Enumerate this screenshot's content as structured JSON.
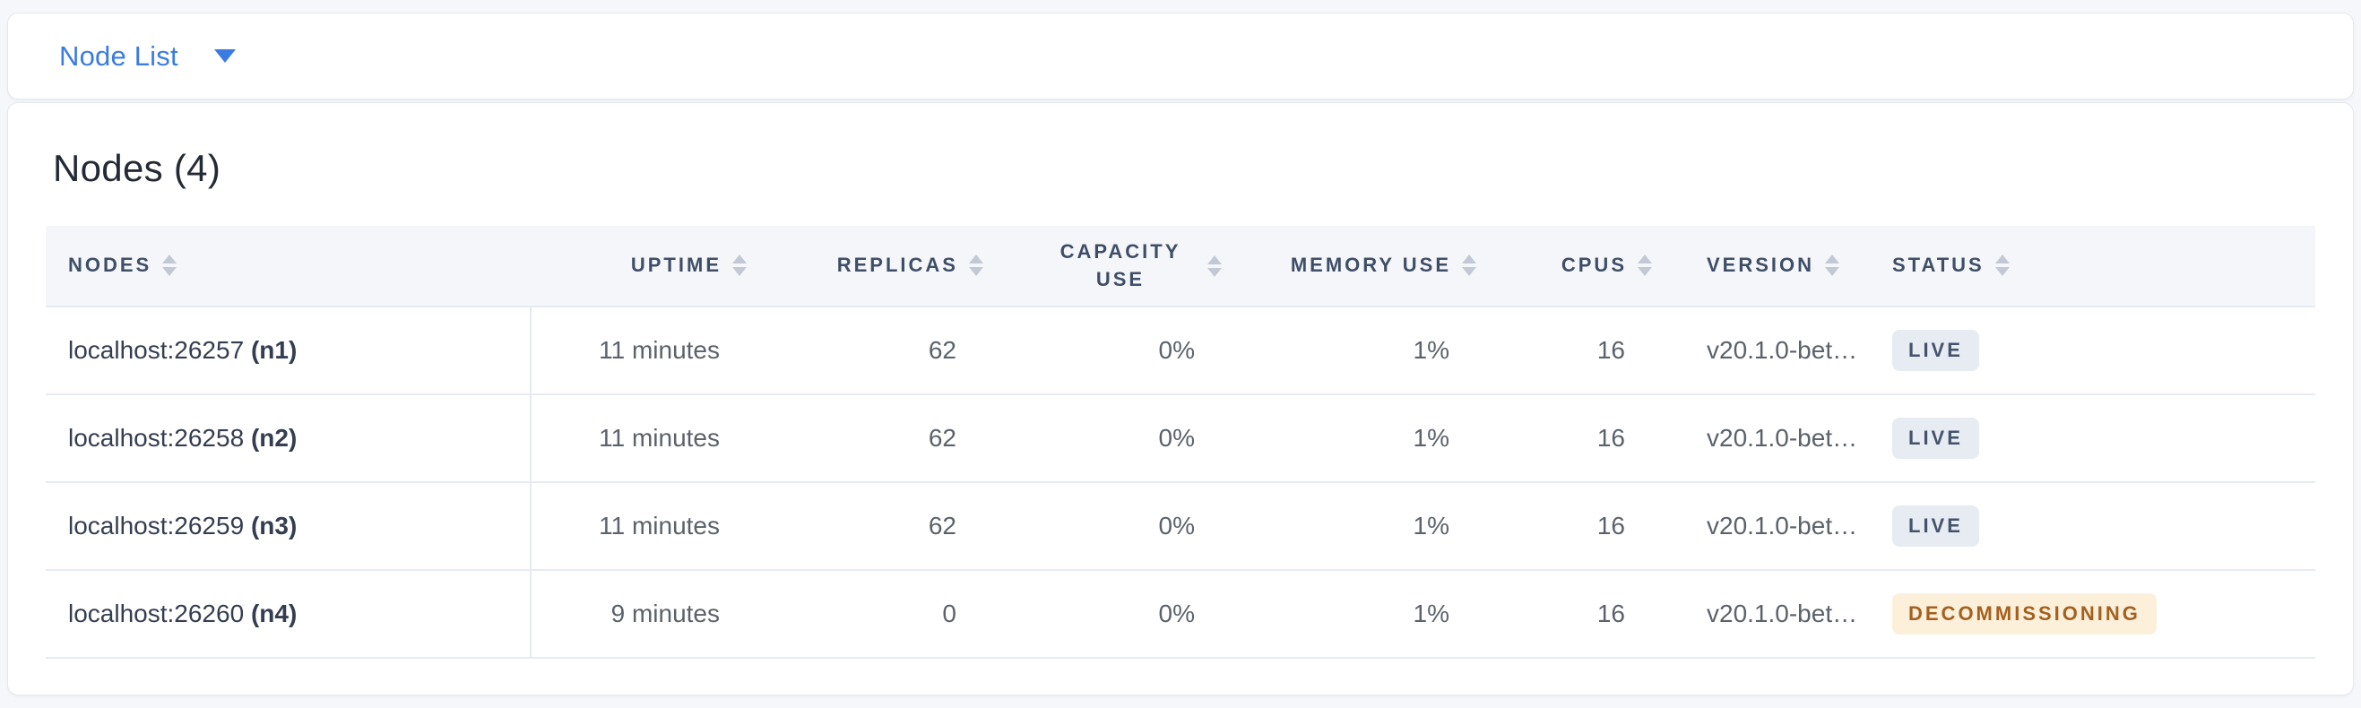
{
  "view_selector": {
    "label": "Node List"
  },
  "summary": {
    "title": "Nodes (4)"
  },
  "table": {
    "columns": [
      {
        "key": "nodes",
        "label": "Nodes",
        "align": "left"
      },
      {
        "key": "uptime",
        "label": "Uptime",
        "align": "right"
      },
      {
        "key": "replicas",
        "label": "Replicas",
        "align": "right"
      },
      {
        "key": "capacity_use",
        "label": "Capacity Use",
        "align": "right"
      },
      {
        "key": "memory_use",
        "label": "Memory Use",
        "align": "right"
      },
      {
        "key": "cpus",
        "label": "CPUs",
        "align": "right"
      },
      {
        "key": "version",
        "label": "Version",
        "align": "left"
      },
      {
        "key": "status",
        "label": "Status",
        "align": "left"
      }
    ],
    "rows": [
      {
        "address": "localhost:26257",
        "node_id": "(n1)",
        "uptime": "11 minutes",
        "replicas": "62",
        "capacity_use": "0%",
        "memory_use": "1%",
        "cpus": "16",
        "version": "v20.1.0-bet…",
        "status": "LIVE",
        "status_type": "live"
      },
      {
        "address": "localhost:26258",
        "node_id": "(n2)",
        "uptime": "11 minutes",
        "replicas": "62",
        "capacity_use": "0%",
        "memory_use": "1%",
        "cpus": "16",
        "version": "v20.1.0-bet…",
        "status": "LIVE",
        "status_type": "live"
      },
      {
        "address": "localhost:26259",
        "node_id": "(n3)",
        "uptime": "11 minutes",
        "replicas": "62",
        "capacity_use": "0%",
        "memory_use": "1%",
        "cpus": "16",
        "version": "v20.1.0-bet…",
        "status": "LIVE",
        "status_type": "live"
      },
      {
        "address": "localhost:26260",
        "node_id": "(n4)",
        "uptime": "9 minutes",
        "replicas": "0",
        "capacity_use": "0%",
        "memory_use": "1%",
        "cpus": "16",
        "version": "v20.1.0-bet…",
        "status": "DECOMMISSIONING",
        "status_type": "decommissioning"
      }
    ]
  },
  "colors": {
    "accent_blue": "#3b7ce2",
    "badge_live_bg": "#e7ebf2",
    "badge_live_text": "#44536d",
    "badge_decommissioning_bg": "#fcf0da",
    "badge_decommissioning_text": "#a4601f"
  }
}
